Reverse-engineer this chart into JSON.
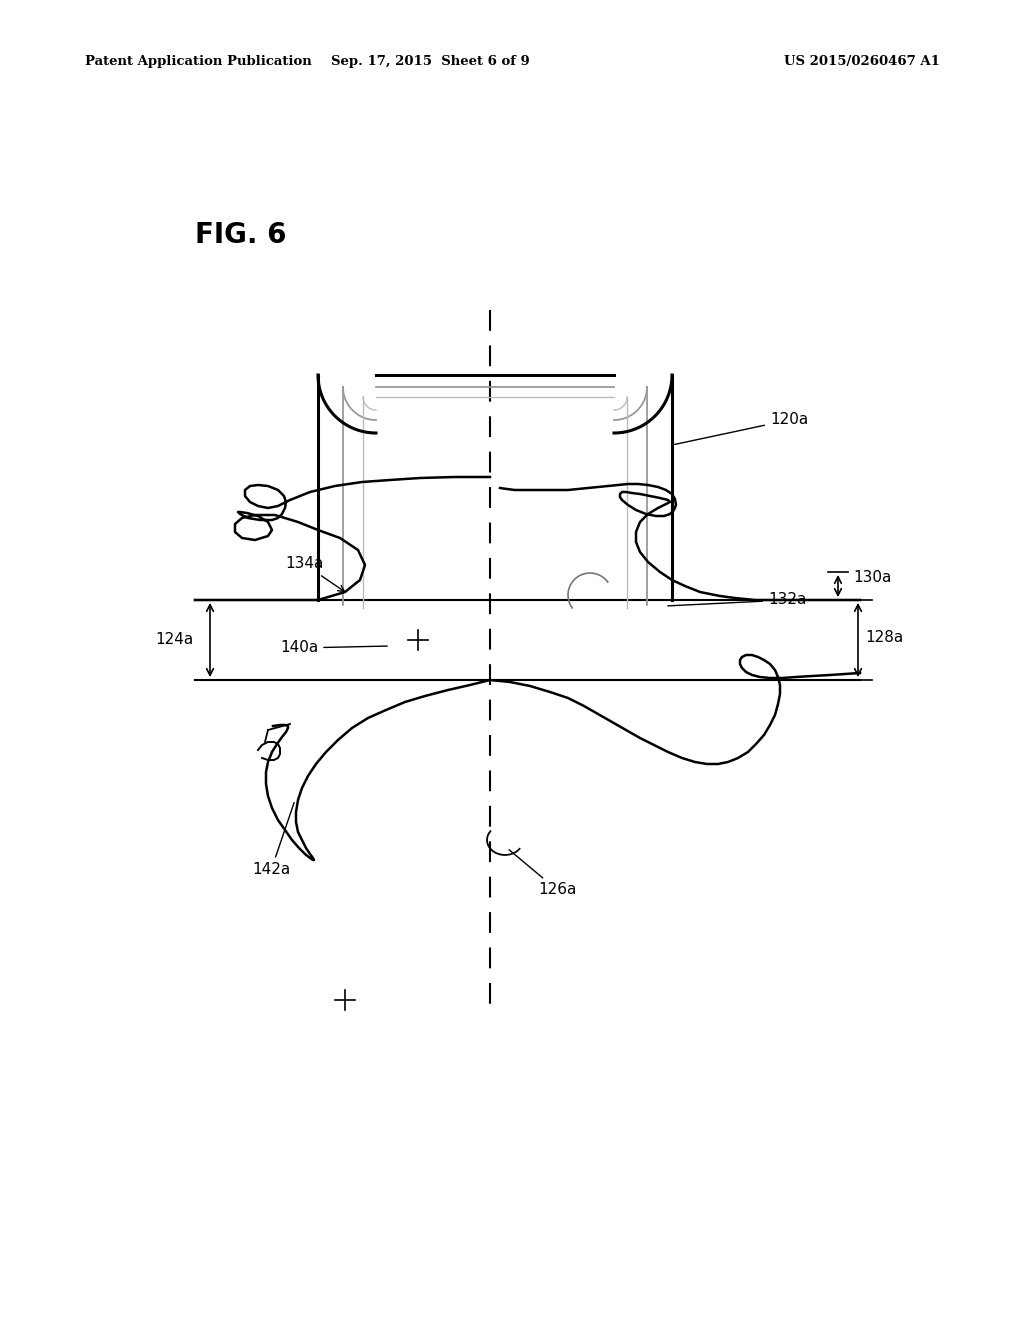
{
  "title": "FIG. 6",
  "header_left": "Patent Application Publication",
  "header_center": "Sep. 17, 2015  Sheet 6 of 9",
  "header_right": "US 2015/0260467 A1",
  "bg_color": "#ffffff",
  "text_color": "#000000",
  "fig_label_fontsize": 20,
  "header_fontsize": 9.5,
  "annotation_fontsize": 11,
  "figw": 10.24,
  "figh": 13.2,
  "dpi": 100
}
